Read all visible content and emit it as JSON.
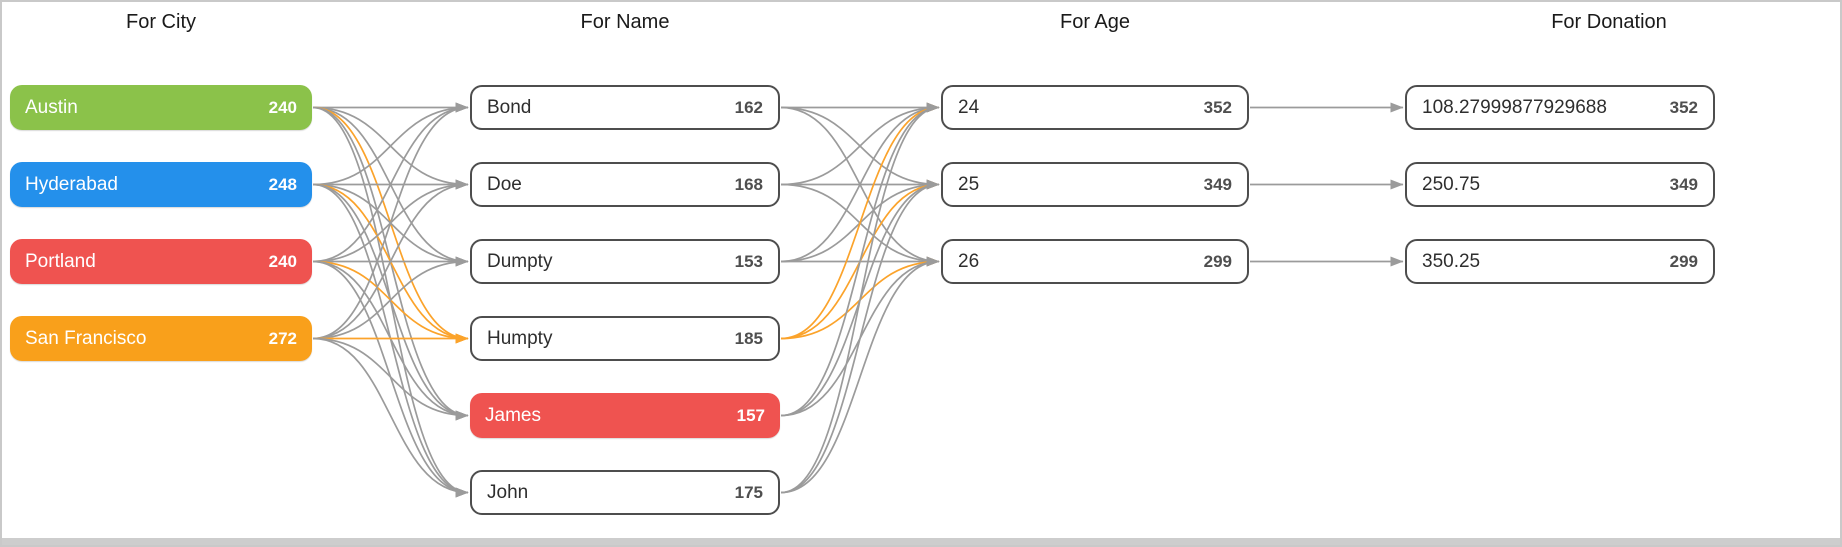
{
  "diagram": {
    "columns": [
      {
        "id": "city",
        "title": "For City",
        "nodes": [
          {
            "label": "Austin",
            "count": "240",
            "fill": "#8BC24A",
            "text_color": "#FFFFFF"
          },
          {
            "label": "Hyderabad",
            "count": "248",
            "fill": "#2490EB",
            "text_color": "#FFFFFF"
          },
          {
            "label": "Portland",
            "count": "240",
            "fill": "#EF5350",
            "text_color": "#FFFFFF"
          },
          {
            "label": "San Francisco",
            "count": "272",
            "fill": "#F9A01B",
            "text_color": "#FFFFFF"
          }
        ]
      },
      {
        "id": "name",
        "title": "For Name",
        "nodes": [
          {
            "label": "Bond",
            "count": "162",
            "fill": "#FFFFFF",
            "text_color": "#2E2E2E"
          },
          {
            "label": "Doe",
            "count": "168",
            "fill": "#FFFFFF",
            "text_color": "#2E2E2E"
          },
          {
            "label": "Dumpty",
            "count": "153",
            "fill": "#FFFFFF",
            "text_color": "#2E2E2E"
          },
          {
            "label": "Humpty",
            "count": "185",
            "fill": "#FFFFFF",
            "text_color": "#2E2E2E"
          },
          {
            "label": "James",
            "count": "157",
            "fill": "#EF5350",
            "text_color": "#FFFFFF"
          },
          {
            "label": "John",
            "count": "175",
            "fill": "#FFFFFF",
            "text_color": "#2E2E2E"
          }
        ]
      },
      {
        "id": "age",
        "title": "For Age",
        "nodes": [
          {
            "label": "24",
            "count": "352",
            "fill": "#FFFFFF",
            "text_color": "#2E2E2E"
          },
          {
            "label": "25",
            "count": "349",
            "fill": "#FFFFFF",
            "text_color": "#2E2E2E"
          },
          {
            "label": "26",
            "count": "299",
            "fill": "#FFFFFF",
            "text_color": "#2E2E2E"
          }
        ]
      },
      {
        "id": "donation",
        "title": "For Donation",
        "nodes": [
          {
            "label": "108.27999877929688",
            "count": "352",
            "fill": "#FFFFFF",
            "text_color": "#2E2E2E"
          },
          {
            "label": "250.75",
            "count": "349",
            "fill": "#FFFFFF",
            "text_color": "#2E2E2E"
          },
          {
            "label": "350.25",
            "count": "299",
            "fill": "#FFFFFF",
            "text_color": "#2E2E2E"
          }
        ]
      }
    ],
    "links": [
      {
        "layer": 0,
        "from": 0,
        "to": 0
      },
      {
        "layer": 0,
        "from": 0,
        "to": 1
      },
      {
        "layer": 0,
        "from": 0,
        "to": 2
      },
      {
        "layer": 0,
        "from": 0,
        "to": 3,
        "highlight": true
      },
      {
        "layer": 0,
        "from": 0,
        "to": 4
      },
      {
        "layer": 0,
        "from": 0,
        "to": 5
      },
      {
        "layer": 0,
        "from": 1,
        "to": 0
      },
      {
        "layer": 0,
        "from": 1,
        "to": 1
      },
      {
        "layer": 0,
        "from": 1,
        "to": 2
      },
      {
        "layer": 0,
        "from": 1,
        "to": 3,
        "highlight": true
      },
      {
        "layer": 0,
        "from": 1,
        "to": 4
      },
      {
        "layer": 0,
        "from": 1,
        "to": 5
      },
      {
        "layer": 0,
        "from": 2,
        "to": 0
      },
      {
        "layer": 0,
        "from": 2,
        "to": 1
      },
      {
        "layer": 0,
        "from": 2,
        "to": 2
      },
      {
        "layer": 0,
        "from": 2,
        "to": 3,
        "highlight": true
      },
      {
        "layer": 0,
        "from": 2,
        "to": 4
      },
      {
        "layer": 0,
        "from": 2,
        "to": 5
      },
      {
        "layer": 0,
        "from": 3,
        "to": 0
      },
      {
        "layer": 0,
        "from": 3,
        "to": 1
      },
      {
        "layer": 0,
        "from": 3,
        "to": 2
      },
      {
        "layer": 0,
        "from": 3,
        "to": 3,
        "highlight": true
      },
      {
        "layer": 0,
        "from": 3,
        "to": 4
      },
      {
        "layer": 0,
        "from": 3,
        "to": 5
      },
      {
        "layer": 1,
        "from": 0,
        "to": 0
      },
      {
        "layer": 1,
        "from": 0,
        "to": 1
      },
      {
        "layer": 1,
        "from": 0,
        "to": 2
      },
      {
        "layer": 1,
        "from": 1,
        "to": 0
      },
      {
        "layer": 1,
        "from": 1,
        "to": 1
      },
      {
        "layer": 1,
        "from": 1,
        "to": 2
      },
      {
        "layer": 1,
        "from": 2,
        "to": 0
      },
      {
        "layer": 1,
        "from": 2,
        "to": 1
      },
      {
        "layer": 1,
        "from": 2,
        "to": 2
      },
      {
        "layer": 1,
        "from": 3,
        "to": 0,
        "highlight": true
      },
      {
        "layer": 1,
        "from": 3,
        "to": 1,
        "highlight": true
      },
      {
        "layer": 1,
        "from": 3,
        "to": 2,
        "highlight": true
      },
      {
        "layer": 1,
        "from": 4,
        "to": 0
      },
      {
        "layer": 1,
        "from": 4,
        "to": 1
      },
      {
        "layer": 1,
        "from": 4,
        "to": 2
      },
      {
        "layer": 1,
        "from": 5,
        "to": 0
      },
      {
        "layer": 1,
        "from": 5,
        "to": 1
      },
      {
        "layer": 1,
        "from": 5,
        "to": 2
      },
      {
        "layer": 2,
        "from": 0,
        "to": 0
      },
      {
        "layer": 2,
        "from": 1,
        "to": 1
      },
      {
        "layer": 2,
        "from": 2,
        "to": 2
      }
    ],
    "colors": {
      "edge": "#9B9B9B",
      "edge_highlight": "#FBA32B",
      "node_border": "#4D4D4D",
      "white_node_label": "#2E2E2E",
      "white_node_count": "#4F4F4F",
      "header_text": "#1A1A1A",
      "frame": "#C9C9C9",
      "selected_node_fill": "#EF5350"
    }
  }
}
